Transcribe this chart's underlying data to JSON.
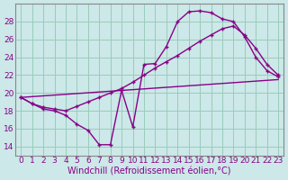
{
  "background_color": "#cce8e8",
  "grid_color": "#99ccbb",
  "line_color": "#880088",
  "xlabel": "Windchill (Refroidissement éolien,°C)",
  "xlabel_fontsize": 7.0,
  "tick_fontsize": 6.5,
  "xlim": [
    -0.5,
    23.5
  ],
  "ylim": [
    13,
    30
  ],
  "yticks": [
    14,
    16,
    18,
    20,
    22,
    24,
    26,
    28
  ],
  "line1_x": [
    0,
    1,
    2,
    3,
    4,
    5,
    6,
    7,
    8,
    9,
    10,
    11,
    12,
    13,
    14,
    15,
    16,
    17,
    18,
    19,
    20,
    21,
    22,
    23
  ],
  "line1_y": [
    19.5,
    18.8,
    18.2,
    18.0,
    17.5,
    16.5,
    15.8,
    14.2,
    14.2,
    20.3,
    16.2,
    23.2,
    23.3,
    25.2,
    28.0,
    29.1,
    29.2,
    29.0,
    28.3,
    28.0,
    26.3,
    24.0,
    22.5,
    21.8
  ],
  "line2_x": [
    0,
    1,
    2,
    3,
    4,
    5,
    6,
    7,
    8,
    9,
    10,
    11,
    12,
    13,
    14,
    15,
    16,
    17,
    18,
    19,
    20,
    21,
    22,
    23
  ],
  "line2_y": [
    19.5,
    18.8,
    18.4,
    18.2,
    18.0,
    18.5,
    19.0,
    19.5,
    20.0,
    20.5,
    21.2,
    22.0,
    22.8,
    23.5,
    24.2,
    25.0,
    25.8,
    26.5,
    27.2,
    27.5,
    26.5,
    25.0,
    23.2,
    22.0
  ],
  "line3_x": [
    0,
    23
  ],
  "line3_y": [
    19.5,
    21.5
  ]
}
